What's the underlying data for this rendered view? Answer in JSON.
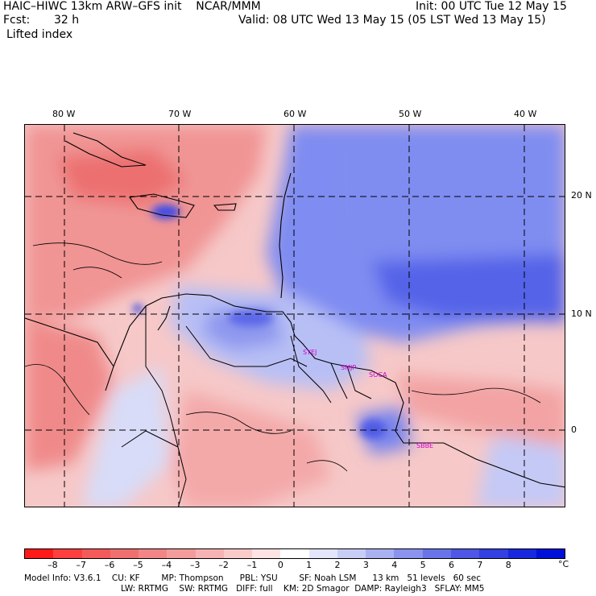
{
  "header": {
    "model_line": "HAIC–HIWC 13km ARW–GFS init    NCAR/MMM",
    "init": "Init: 00 UTC Tue 12 May 15",
    "fcst_label": "Fcst:",
    "fcst_value": "32 h",
    "valid": "Valid: 08 UTC Wed 13 May 15 (05 LST Wed 13 May 15)",
    "field": "Lifted index"
  },
  "map": {
    "lon_labels": [
      "80 W",
      "70 W",
      "60 W",
      "50 W",
      "40 W"
    ],
    "lat_labels": [
      "20 N",
      "10 N",
      "0"
    ],
    "stations": [
      "SYEJ",
      "SMJP",
      "SOCA",
      "SBBE"
    ],
    "colors": {
      "warm": "#f08080",
      "cool": "#6a7cf0",
      "deep_cool": "#2a3ae0"
    }
  },
  "colorbar": {
    "ticks": [
      "–8",
      "–7",
      "–6",
      "–5",
      "–4",
      "–3",
      "–2",
      "–1",
      "0",
      "1",
      "2",
      "3",
      "4",
      "5",
      "6",
      "7",
      "8"
    ],
    "unit": "°C",
    "colors": [
      "#ff1a1a",
      "#ff3f3f",
      "#f55a5a",
      "#f07070",
      "#f28686",
      "#f49c9c",
      "#f7b3b3",
      "#facaca",
      "#fde3e3",
      "#ffffff",
      "#e3e6fb",
      "#c8cdf6",
      "#aab1f2",
      "#8a93ee",
      "#6a74ea",
      "#4e57e6",
      "#3340e2",
      "#1828de",
      "#0010d8"
    ]
  },
  "footer": {
    "line1": "Model Info: V3.6.1    CU: KF        MP: Thompson      PBL: YSU        SF: Noah LSM      13 km   51 levels   60 sec",
    "line2": "LW: RRTMG    SW: RRTMG   DIFF: full    KM: 2D Smagor  DAMP: Rayleigh3   SFLAY: MM5"
  }
}
